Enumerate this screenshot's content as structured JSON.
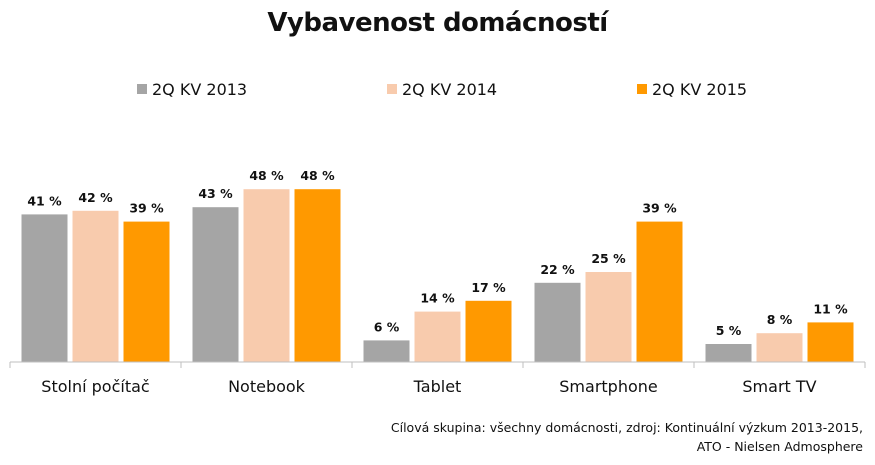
{
  "chart_data": {
    "type": "bar",
    "title": "Vybavenost domácností",
    "categories": [
      "Stolní počítač",
      "Notebook",
      "Tablet",
      "Smartphone",
      "Smart TV"
    ],
    "series": [
      {
        "name": "2Q KV 2013",
        "color": "#a5a5a5",
        "values": [
          41,
          43,
          6,
          22,
          5
        ]
      },
      {
        "name": "2Q KV 2014",
        "color": "#f8cbad",
        "values": [
          42,
          48,
          14,
          25,
          8
        ]
      },
      {
        "name": "2Q KV 2015",
        "color": "#ff9900",
        "values": [
          39,
          48,
          17,
          39,
          11
        ]
      }
    ],
    "value_suffix": " %",
    "ylim": [
      0,
      60
    ],
    "grid": false,
    "legend_position": "top"
  },
  "source": {
    "line1": "Cílová skupina: všechny domácnosti, zdroj: Kontinuální výzkum 2013-2015,",
    "line2": "ATO - Nielsen Admosphere"
  }
}
